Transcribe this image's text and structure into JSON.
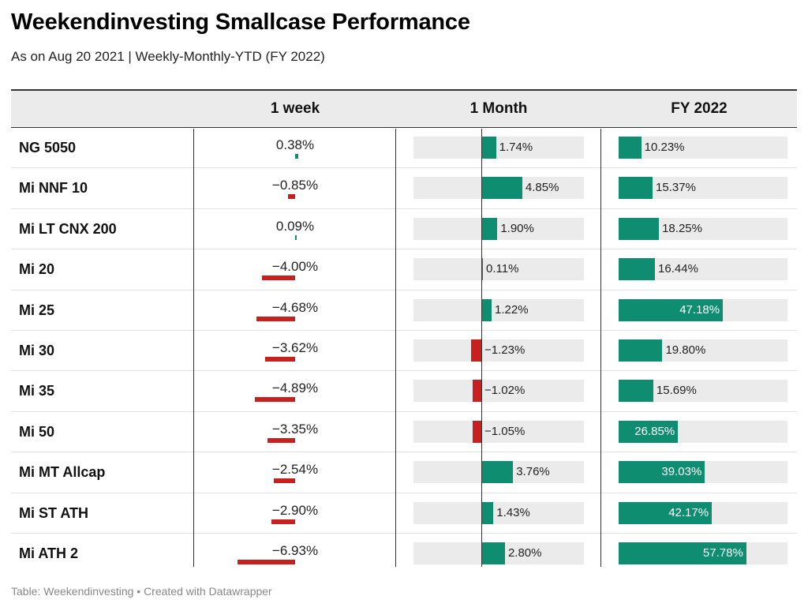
{
  "title": "Weekendinvesting Smallcase Performance",
  "subtitle": "As on Aug 20 2021 | Weekly-Monthly-YTD (FY 2022)",
  "footer": "Table: Weekendinvesting • Created with Datawrapper",
  "colors": {
    "positive": "#0f8d70",
    "negative": "#c8201f",
    "track": "#ebebeb"
  },
  "chart_data": {
    "type": "table",
    "columns": [
      "",
      "1 week",
      "1 Month",
      "FY 2022"
    ],
    "rows": [
      {
        "name": "NG 5050",
        "week": 0.38,
        "week_label": "0.38%",
        "month": 1.74,
        "month_label": "1.74%",
        "fy": 10.23,
        "fy_label": "10.23%"
      },
      {
        "name": "Mi NNF 10",
        "week": -0.85,
        "week_label": "−0.85%",
        "month": 4.85,
        "month_label": "4.85%",
        "fy": 15.37,
        "fy_label": "15.37%"
      },
      {
        "name": "Mi LT CNX 200",
        "week": 0.09,
        "week_label": "0.09%",
        "month": 1.9,
        "month_label": "1.90%",
        "fy": 18.25,
        "fy_label": "18.25%"
      },
      {
        "name": "Mi 20",
        "week": -4.0,
        "week_label": "−4.00%",
        "month": 0.11,
        "month_label": "0.11%",
        "fy": 16.44,
        "fy_label": "16.44%"
      },
      {
        "name": "Mi 25",
        "week": -4.68,
        "week_label": "−4.68%",
        "month": 1.22,
        "month_label": "1.22%",
        "fy": 47.18,
        "fy_label": "47.18%"
      },
      {
        "name": "Mi 30",
        "week": -3.62,
        "week_label": "−3.62%",
        "month": -1.23,
        "month_label": "−1.23%",
        "fy": 19.8,
        "fy_label": "19.80%"
      },
      {
        "name": "Mi 35",
        "week": -4.89,
        "week_label": "−4.89%",
        "month": -1.02,
        "month_label": "−1.02%",
        "fy": 15.69,
        "fy_label": "15.69%"
      },
      {
        "name": "Mi 50",
        "week": -3.35,
        "week_label": "−3.35%",
        "month": -1.05,
        "month_label": "−1.05%",
        "fy": 26.85,
        "fy_label": "26.85%"
      },
      {
        "name": "Mi MT Allcap",
        "week": -2.54,
        "week_label": "−2.54%",
        "month": 3.76,
        "month_label": "3.76%",
        "fy": 39.03,
        "fy_label": "39.03%"
      },
      {
        "name": "Mi ST ATH",
        "week": -2.9,
        "week_label": "−2.90%",
        "month": 1.43,
        "month_label": "1.43%",
        "fy": 42.17,
        "fy_label": "42.17%"
      },
      {
        "name": "Mi ATH 2",
        "week": -6.93,
        "week_label": "−6.93%",
        "month": 2.8,
        "month_label": "2.80%",
        "fy": 57.78,
        "fy_label": "57.78%"
      }
    ]
  }
}
